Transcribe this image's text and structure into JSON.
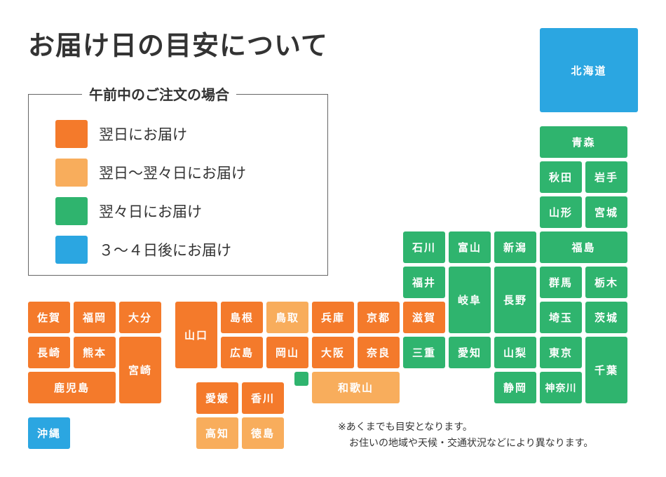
{
  "title": "お届け日の目安について",
  "legend": {
    "title": "午前中のご注文の場合",
    "items": [
      {
        "label": "翌日にお届け",
        "color": "#f47a2b"
      },
      {
        "label": "翌日〜翌々日にお届け",
        "color": "#f8ad5c"
      },
      {
        "label": "翌々日にお届け",
        "color": "#2fb46e"
      },
      {
        "label": "３〜４日後にお届け",
        "color": "#2ba6e1"
      }
    ]
  },
  "colors": {
    "orange": "#f47a2b",
    "light_orange": "#f8ad5c",
    "green": "#2fb46e",
    "blue": "#2ba6e1"
  },
  "prefectures": {
    "hokkaido": "北海道",
    "aomori": "青森",
    "akita": "秋田",
    "iwate": "岩手",
    "yamagata": "山形",
    "miyagi": "宮城",
    "ishikawa": "石川",
    "toyama": "富山",
    "niigata": "新潟",
    "fukushima": "福島",
    "fukui": "福井",
    "gifu": "岐阜",
    "nagano": "長野",
    "gunma": "群馬",
    "tochigi": "栃木",
    "saga": "佐賀",
    "fukuoka": "福岡",
    "oita": "大分",
    "yamaguchi": "山口",
    "shimane": "島根",
    "tottori": "鳥取",
    "hyogo": "兵庫",
    "kyoto": "京都",
    "shiga": "滋賀",
    "saitama": "埼玉",
    "ibaraki": "茨城",
    "nagasaki": "長崎",
    "kumamoto": "熊本",
    "miyazaki": "宮崎",
    "hiroshima": "広島",
    "okayama": "岡山",
    "osaka": "大阪",
    "nara": "奈良",
    "mie": "三重",
    "aichi": "愛知",
    "yamanashi": "山梨",
    "tokyo": "東京",
    "chiba": "千葉",
    "kagoshima": "鹿児島",
    "wakayama": "和歌山",
    "shizuoka": "静岡",
    "kanagawa": "神奈川",
    "ehime": "愛媛",
    "kagawa": "香川",
    "kochi": "高知",
    "tokushima": "徳島",
    "okinawa": "沖縄"
  },
  "notes": {
    "line1": "※あくまでも目安となります。",
    "line2": "お住いの地域や天候・交通状況などにより異なります。"
  }
}
